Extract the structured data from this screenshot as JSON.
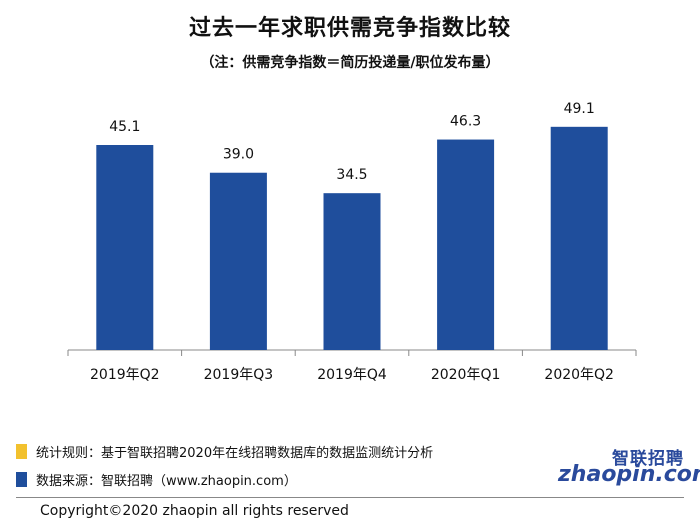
{
  "chart_data": {
    "type": "bar",
    "title": "过去一年求职供需竞争指数比较",
    "subtitle": "（注：供需竞争指数＝简历投递量/职位发布量）",
    "categories": [
      "2019年Q2",
      "2019年Q3",
      "2019年Q4",
      "2020年Q1",
      "2020年Q2"
    ],
    "values": [
      45.1,
      39.0,
      34.5,
      46.3,
      49.1
    ],
    "value_labels": [
      "45.1",
      "39.0",
      "34.5",
      "46.3",
      "49.1"
    ],
    "xlabel": "",
    "ylabel": "",
    "ylim": [
      0,
      55
    ],
    "bar_color": "#1f4e9c",
    "grid": false
  },
  "notes": {
    "rule_label": "统计规则：基于智联招聘2020年在线招聘数据库的数据监测统计分析",
    "rule_color": "#f2c12e",
    "source_label": "数据来源：智联招聘（www.zhaopin.com）",
    "source_color": "#1f4e9c"
  },
  "logo": {
    "cn": "智联招聘",
    "en": "zhaopin.com"
  },
  "footer": {
    "copyright": "Copyright©2020 zhaopin all rights reserved"
  }
}
